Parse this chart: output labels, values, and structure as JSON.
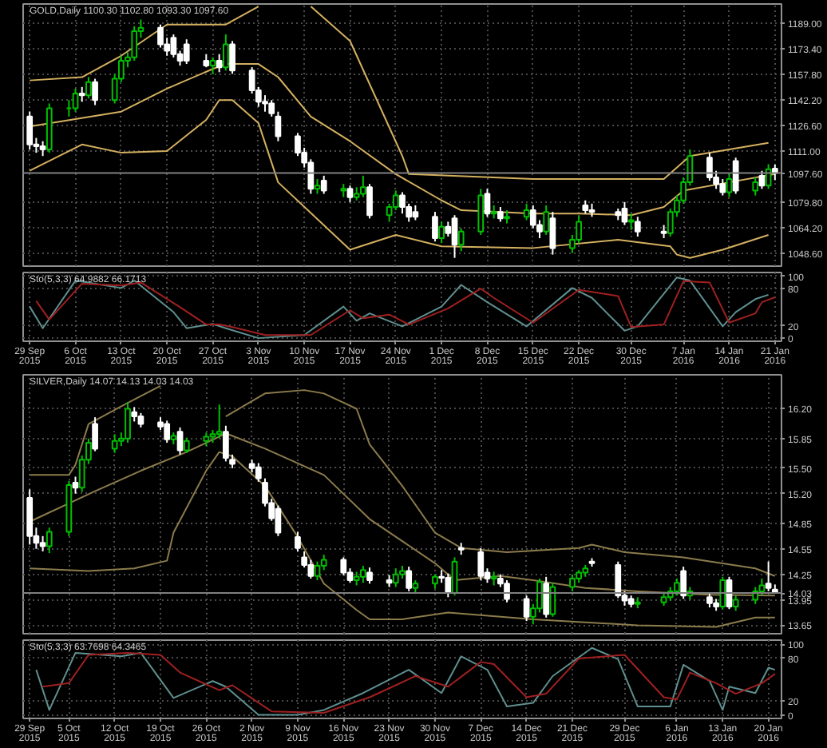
{
  "chart_data": [
    {
      "type": "candlestick",
      "title": "GOLD,Daily 1100.30 1102.80 1093.30 1097.60",
      "tick_labels": "y",
      "grid": true,
      "x": [
        "2015-09-29",
        "2015-09-30",
        "2015-10-01",
        "2015-10-02",
        "2015-10-05",
        "2015-10-06",
        "2015-10-07",
        "2015-10-08",
        "2015-10-09",
        "2015-10-12",
        "2015-10-13",
        "2015-10-14",
        "2015-10-15",
        "2015-10-16",
        "2015-10-19",
        "2015-10-20",
        "2015-10-21",
        "2015-10-22",
        "2015-10-23",
        "2015-10-26",
        "2015-10-27",
        "2015-10-28",
        "2015-10-29",
        "2015-10-30",
        "2015-11-02",
        "2015-11-03",
        "2015-11-04",
        "2015-11-05",
        "2015-11-06",
        "2015-11-09",
        "2015-11-10",
        "2015-11-11",
        "2015-11-12",
        "2015-11-13",
        "2015-11-16",
        "2015-11-17",
        "2015-11-18",
        "2015-11-19",
        "2015-11-20",
        "2015-11-23",
        "2015-11-24",
        "2015-11-25",
        "2015-11-26",
        "2015-11-27",
        "2015-11-30",
        "2015-12-01",
        "2015-12-02",
        "2015-12-03",
        "2015-12-04",
        "2015-12-07",
        "2015-12-08",
        "2015-12-09",
        "2015-12-10",
        "2015-12-11",
        "2015-12-14",
        "2015-12-15",
        "2015-12-16",
        "2015-12-17",
        "2015-12-18",
        "2015-12-21",
        "2015-12-22",
        "2015-12-23",
        "2015-12-24",
        "2015-12-28",
        "2015-12-29",
        "2015-12-30",
        "2015-12-31",
        "2016-01-04",
        "2016-01-05",
        "2016-01-06",
        "2016-01-07",
        "2016-01-08",
        "2016-01-11",
        "2016-01-12",
        "2016-01-13",
        "2016-01-14",
        "2016-01-15",
        "2016-01-18",
        "2016-01-19",
        "2016-01-20",
        "2016-01-21"
      ],
      "ohlc": [
        [
          1132,
          1135,
          1112,
          1115
        ],
        [
          1115,
          1119,
          1110,
          1114
        ],
        [
          1114,
          1117,
          1108,
          1112
        ],
        [
          1112,
          1140,
          1110,
          1137
        ],
        [
          1137,
          1142,
          1132,
          1137
        ],
        [
          1137,
          1149,
          1135,
          1146
        ],
        [
          1146,
          1150,
          1141,
          1145
        ],
        [
          1145,
          1156,
          1143,
          1153
        ],
        [
          1153,
          1155,
          1139,
          1142
        ],
        [
          1142,
          1158,
          1140,
          1155
        ],
        [
          1155,
          1169,
          1153,
          1166
        ],
        [
          1166,
          1171,
          1162,
          1168
        ],
        [
          1168,
          1187,
          1166,
          1184
        ],
        [
          1184,
          1191,
          1180,
          1186
        ],
        [
          1186,
          1188,
          1174,
          1176
        ],
        [
          1176,
          1180,
          1169,
          1172
        ],
        [
          1180,
          1182,
          1168,
          1170
        ],
        [
          1170,
          1172,
          1163,
          1166
        ],
        [
          1176,
          1179,
          1164,
          1166
        ],
        [
          1166,
          1170,
          1162,
          1163
        ],
        [
          1163,
          1168,
          1158,
          1166
        ],
        [
          1166,
          1170,
          1159,
          1162
        ],
        [
          1162,
          1182,
          1160,
          1176
        ],
        [
          1176,
          1178,
          1158,
          1160
        ],
        [
          1160,
          1162,
          1146,
          1148
        ],
        [
          1148,
          1150,
          1138,
          1141
        ],
        [
          1141,
          1145,
          1135,
          1140
        ],
        [
          1140,
          1142,
          1132,
          1134
        ],
        [
          1132,
          1135,
          1117,
          1120
        ],
        [
          1120,
          1122,
          1108,
          1110
        ],
        [
          1110,
          1113,
          1101,
          1104
        ],
        [
          1104,
          1106,
          1085,
          1088
        ],
        [
          1088,
          1094,
          1085,
          1090
        ],
        [
          1093,
          1096,
          1085,
          1087
        ],
        [
          1087,
          1091,
          1083,
          1088
        ],
        [
          1088,
          1090,
          1080,
          1083
        ],
        [
          1083,
          1089,
          1081,
          1085
        ],
        [
          1085,
          1096,
          1083,
          1089
        ],
        [
          1089,
          1091,
          1070,
          1072
        ],
        [
          1072,
          1079,
          1068,
          1077
        ],
        [
          1077,
          1087,
          1075,
          1084
        ],
        [
          1084,
          1086,
          1073,
          1077
        ],
        [
          1077,
          1079,
          1068,
          1071
        ],
        [
          1074,
          1078,
          1069,
          1071
        ],
        [
          1071,
          1074,
          1056,
          1058
        ],
        [
          1058,
          1068,
          1055,
          1065
        ],
        [
          1065,
          1068,
          1059,
          1061
        ],
        [
          1070,
          1072,
          1046,
          1054
        ],
        [
          1054,
          1064,
          1050,
          1062
        ],
        [
          1062,
          1088,
          1060,
          1084
        ],
        [
          1085,
          1088,
          1071,
          1073
        ],
        [
          1073,
          1078,
          1070,
          1074
        ],
        [
          1074,
          1077,
          1068,
          1070
        ],
        [
          1070,
          1075,
          1067,
          1071
        ],
        [
          1071,
          1079,
          1069,
          1075
        ],
        [
          1075,
          1078,
          1064,
          1066
        ],
        [
          1066,
          1069,
          1058,
          1062
        ],
        [
          1062,
          1078,
          1060,
          1074
        ],
        [
          1070,
          1074,
          1048,
          1052
        ],
        [
          1052,
          1060,
          1049,
          1057
        ],
        [
          1057,
          1072,
          1055,
          1068
        ],
        [
          1078,
          1081,
          1073,
          1075
        ],
        [
          1075,
          1079,
          1071,
          1074
        ],
        [
          1074,
          1076,
          1069,
          1072
        ],
        [
          1076,
          1080,
          1066,
          1068
        ],
        [
          1068,
          1073,
          1063,
          1069
        ],
        [
          1068,
          1071,
          1059,
          1062
        ],
        [
          1062,
          1066,
          1058,
          1061
        ],
        [
          1061,
          1076,
          1059,
          1074
        ],
        [
          1074,
          1084,
          1071,
          1081
        ],
        [
          1081,
          1095,
          1079,
          1092
        ],
        [
          1092,
          1112,
          1090,
          1108
        ],
        [
          1107,
          1110,
          1093,
          1095
        ],
        [
          1095,
          1099,
          1088,
          1091
        ],
        [
          1091,
          1094,
          1084,
          1086
        ],
        [
          1086,
          1097,
          1083,
          1094
        ],
        [
          1105,
          1107,
          1085,
          1087
        ],
        [
          1087,
          1095,
          1084,
          1092
        ],
        [
          1096,
          1099,
          1088,
          1090
        ],
        [
          1090,
          1103,
          1088,
          1100
        ],
        [
          1100.3,
          1102.8,
          1093.3,
          1097.6
        ]
      ],
      "colors": [
        "#ffffff",
        "#ffffff",
        "#ffffff",
        "#00c000",
        "#00c000",
        "#00c000",
        "#ffffff",
        "#00c000",
        "#ffffff",
        "#00c000",
        "#00c000",
        "#00c000",
        "#00c000",
        "#00c000",
        "#ffffff",
        "#ffffff",
        "#ffffff",
        "#ffffff",
        "#ffffff",
        "#ffffff",
        "#00c000",
        "#ffffff",
        "#00c000",
        "#ffffff",
        "#ffffff",
        "#ffffff",
        "#ffffff",
        "#ffffff",
        "#ffffff",
        "#ffffff",
        "#ffffff",
        "#ffffff",
        "#00c000",
        "#ffffff",
        "#00c000",
        "#ffffff",
        "#00c000",
        "#00c000",
        "#ffffff",
        "#00c000",
        "#00c000",
        "#ffffff",
        "#ffffff",
        "#ffffff",
        "#ffffff",
        "#00c000",
        "#ffffff",
        "#ffffff",
        "#00c000",
        "#00c000",
        "#ffffff",
        "#00c000",
        "#ffffff",
        "#00c000",
        "#00c000",
        "#ffffff",
        "#ffffff",
        "#00c000",
        "#ffffff",
        "#00c000",
        "#00c000",
        "#ffffff",
        "#ffffff",
        "#ffffff",
        "#ffffff",
        "#00c000",
        "#ffffff",
        "#ffffff",
        "#00c000",
        "#00c000",
        "#00c000",
        "#00c000",
        "#ffffff",
        "#ffffff",
        "#ffffff",
        "#00c000",
        "#ffffff",
        "#00c000",
        "#ffffff",
        "#00c000",
        "#ffffff"
      ],
      "series": [
        {
          "type": "line",
          "color": "#d4b060",
          "x": [
            "2015-09-29",
            "2015-10-07",
            "2015-10-13",
            "2015-10-20",
            "2015-10-29",
            "2015-11-03",
            "2015-11-04",
            "2015-11-11",
            "2015-11-17",
            "2015-11-25",
            "2015-11-26",
            "2015-12-15",
            "2016-01-04",
            "2016-01-08",
            "2016-01-20"
          ],
          "values": [
            1154,
            1156,
            1169,
            1188,
            1188,
            1199,
            null,
            1199,
            1178,
            1108,
            1097,
            1094,
            1094,
            1108,
            1116
          ]
        },
        {
          "type": "line",
          "color": "#d4b060",
          "x": [
            "2015-09-29",
            "2015-10-13",
            "2015-10-20",
            "2015-10-27",
            "2015-10-29",
            "2015-11-03",
            "2015-11-06",
            "2015-11-11",
            "2015-11-17",
            "2015-11-24",
            "2015-12-01",
            "2015-12-04",
            "2015-12-15",
            "2015-12-22",
            "2015-12-30",
            "2016-01-04",
            "2016-01-07",
            "2016-01-14",
            "2016-01-21"
          ],
          "values": [
            1126,
            1135,
            1149,
            1161,
            1164,
            1164,
            1156,
            1132,
            1117,
            1097,
            1081,
            1075,
            1073,
            1073,
            1072,
            1077,
            1087,
            1092,
            1097
          ]
        },
        {
          "type": "line",
          "color": "#d4b060",
          "x": [
            "2015-09-29",
            "2015-10-07",
            "2015-10-13",
            "2015-10-20",
            "2015-10-26",
            "2015-10-28",
            "2015-10-30",
            "2015-11-03",
            "2015-11-06",
            "2015-11-17",
            "2015-11-24",
            "2015-12-01",
            "2015-12-15",
            "2015-12-28",
            "2016-01-05",
            "2016-01-06",
            "2016-01-08",
            "2016-01-13",
            "2016-01-20"
          ],
          "values": [
            1099,
            1115,
            1110,
            1111,
            1130,
            1142,
            1142,
            1128,
            1092,
            1051,
            1060,
            1053,
            1052,
            1057,
            1053,
            1048,
            1046,
            1051,
            1060
          ]
        }
      ],
      "xlim": [
        "2015-09-28",
        "2016-01-22"
      ],
      "xticks": [
        "2015-09-29",
        "2015-10-06",
        "2015-10-13",
        "2015-10-20",
        "2015-10-27",
        "2015-11-03",
        "2015-11-10",
        "2015-11-17",
        "2015-11-24",
        "2015-12-01",
        "2015-12-08",
        "2015-12-15",
        "2015-12-22",
        "2015-12-30",
        "2016-01-07",
        "2016-01-14",
        "2016-01-21"
      ],
      "ylim": [
        1041,
        1200.5
      ],
      "yticks": [
        {
          "value": 1048.6,
          "label": "1048.60"
        },
        {
          "value": 1064.2,
          "label": "1064.20"
        },
        {
          "value": 1079.8,
          "label": "1079.80"
        },
        {
          "value": 1111.0,
          "label": "1111.00"
        },
        {
          "value": 1126.6,
          "label": "1126.60"
        },
        {
          "value": 1142.2,
          "label": "1142.20"
        },
        {
          "value": 1157.8,
          "label": "1157.80"
        },
        {
          "value": 1173.4,
          "label": "1173.40"
        },
        {
          "value": 1189.0,
          "label": "1189.00"
        }
      ],
      "ref_lines": [
        {
          "axis": "y",
          "value": 1097.6,
          "label": "1097.60",
          "color": "#808080"
        }
      ]
    },
    {
      "type": "line",
      "title": "Sto(5,3,3) 64.9882 66.1713",
      "grid": true,
      "series": [
        {
          "color": "#5f8f8f",
          "x": [
            "2015-09-29",
            "2015-10-01",
            "2015-10-06",
            "2015-10-13",
            "2015-10-15",
            "2015-10-21",
            "2015-10-23",
            "2015-10-27",
            "2015-10-29",
            "2015-11-03",
            "2015-11-10",
            "2015-11-16",
            "2015-11-18",
            "2015-11-20",
            "2015-11-25",
            "2015-12-01",
            "2015-12-04",
            "2015-12-08",
            "2015-12-14",
            "2015-12-21",
            "2015-12-24",
            "2015-12-29",
            "2015-12-31",
            "2016-01-06",
            "2016-01-08",
            "2016-01-13",
            "2016-01-15",
            "2016-01-18",
            "2016-01-20"
          ],
          "values": [
            51,
            16,
            93,
            81,
            93,
            42,
            16,
            23,
            16,
            0,
            5,
            51,
            28,
            40,
            19,
            51,
            86,
            58,
            19,
            81,
            65,
            12,
            19,
            98,
            93,
            19,
            42,
            63,
            70
          ]
        },
        {
          "color": "#a02020",
          "x": [
            "2015-09-30",
            "2015-10-02",
            "2015-10-07",
            "2015-10-13",
            "2015-10-16",
            "2015-10-22",
            "2015-10-26",
            "2015-10-28",
            "2015-10-30",
            "2015-11-04",
            "2015-11-11",
            "2015-11-17",
            "2015-11-19",
            "2015-11-23",
            "2015-11-26",
            "2015-12-02",
            "2015-12-07",
            "2015-12-09",
            "2015-12-15",
            "2015-12-22",
            "2015-12-28",
            "2015-12-30",
            "2016-01-04",
            "2016-01-07",
            "2016-01-11",
            "2016-01-14",
            "2016-01-18",
            "2016-01-19",
            "2016-01-21"
          ],
          "values": [
            60,
            30,
            88,
            85,
            90,
            50,
            22,
            22,
            18,
            5,
            5,
            45,
            32,
            38,
            22,
            48,
            80,
            65,
            25,
            78,
            68,
            18,
            22,
            92,
            90,
            25,
            40,
            58,
            66
          ]
        }
      ],
      "xlim": [
        "2015-09-28",
        "2016-01-22"
      ],
      "xticks": [
        {
          "value": "2015-09-29",
          "label": "29 Sep 2015"
        },
        {
          "value": "2015-10-06",
          "label": "6 Oct 2015"
        },
        {
          "value": "2015-10-13",
          "label": "13 Oct 2015"
        },
        {
          "value": "2015-10-20",
          "label": "20 Oct 2015"
        },
        {
          "value": "2015-10-27",
          "label": "27 Oct 2015"
        },
        {
          "value": "2015-11-03",
          "label": "3 Nov 2015"
        },
        {
          "value": "2015-11-10",
          "label": "10 Nov 2015"
        },
        {
          "value": "2015-11-17",
          "label": "17 Nov 2015"
        },
        {
          "value": "2015-11-24",
          "label": "24 Nov 2015"
        },
        {
          "value": "2015-12-01",
          "label": "1 Dec 2015"
        },
        {
          "value": "2015-12-08",
          "label": "8 Dec 2015"
        },
        {
          "value": "2015-12-15",
          "label": "15 Dec 2015"
        },
        {
          "value": "2015-12-22",
          "label": "22 Dec 2015"
        },
        {
          "value": "2015-12-30",
          "label": "30 Dec 2015"
        },
        {
          "value": "2016-01-07",
          "label": "7 Jan 2016"
        },
        {
          "value": "2016-01-14",
          "label": "14 Jan 2016"
        },
        {
          "value": "2016-01-21",
          "label": "21 Jan 2016"
        }
      ],
      "ylim": [
        -5,
        106
      ],
      "yticks": [
        0,
        20,
        80,
        100
      ]
    },
    {
      "type": "candlestick",
      "title": "SILVER,Daily 14.07 14.13 14.03 14.03",
      "tick_labels": "y",
      "grid": true,
      "x": [
        "2015-09-29",
        "2015-09-30",
        "2015-10-01",
        "2015-10-02",
        "2015-10-05",
        "2015-10-06",
        "2015-10-07",
        "2015-10-08",
        "2015-10-09",
        "2015-10-12",
        "2015-10-13",
        "2015-10-14",
        "2015-10-15",
        "2015-10-16",
        "2015-10-19",
        "2015-10-20",
        "2015-10-21",
        "2015-10-22",
        "2015-10-23",
        "2015-10-26",
        "2015-10-27",
        "2015-10-28",
        "2015-10-29",
        "2015-10-30",
        "2015-11-02",
        "2015-11-03",
        "2015-11-04",
        "2015-11-05",
        "2015-11-06",
        "2015-11-09",
        "2015-11-10",
        "2015-11-11",
        "2015-11-12",
        "2015-11-13",
        "2015-11-16",
        "2015-11-17",
        "2015-11-18",
        "2015-11-19",
        "2015-11-20",
        "2015-11-23",
        "2015-11-24",
        "2015-11-25",
        "2015-11-26",
        "2015-11-27",
        "2015-11-30",
        "2015-12-01",
        "2015-12-02",
        "2015-12-03",
        "2015-12-04",
        "2015-12-07",
        "2015-12-08",
        "2015-12-09",
        "2015-12-10",
        "2015-12-11",
        "2015-12-14",
        "2015-12-15",
        "2015-12-16",
        "2015-12-17",
        "2015-12-18",
        "2015-12-21",
        "2015-12-22",
        "2015-12-23",
        "2015-12-24",
        "2015-12-28",
        "2015-12-29",
        "2015-12-30",
        "2015-12-31",
        "2016-01-04",
        "2016-01-05",
        "2016-01-06",
        "2016-01-07",
        "2016-01-08",
        "2016-01-11",
        "2016-01-12",
        "2016-01-13",
        "2016-01-14",
        "2016-01-15",
        "2016-01-18",
        "2016-01-19",
        "2016-01-20",
        "2016-01-21"
      ],
      "ohlc": [
        [
          15.15,
          15.25,
          14.6,
          14.7
        ],
        [
          14.7,
          14.8,
          14.55,
          14.62
        ],
        [
          14.62,
          14.7,
          14.52,
          14.58
        ],
        [
          14.58,
          14.8,
          14.5,
          14.75
        ],
        [
          14.75,
          15.35,
          14.7,
          15.3
        ],
        [
          15.33,
          15.4,
          15.2,
          15.27
        ],
        [
          15.27,
          15.65,
          15.22,
          15.6
        ],
        [
          15.6,
          15.85,
          15.55,
          15.8
        ],
        [
          16.02,
          16.1,
          15.7,
          15.73
        ],
        [
          15.73,
          15.9,
          15.68,
          15.82
        ],
        [
          15.82,
          15.92,
          15.76,
          15.85
        ],
        [
          15.85,
          16.28,
          15.8,
          16.2
        ],
        [
          16.16,
          16.22,
          16.05,
          16.11
        ],
        [
          16.11,
          16.15,
          15.98,
          16.02
        ],
        [
          16.04,
          16.1,
          15.95,
          15.99
        ],
        [
          16.02,
          16.06,
          15.8,
          15.84
        ],
        [
          15.84,
          15.92,
          15.78,
          15.88
        ],
        [
          15.93,
          15.98,
          15.66,
          15.71
        ],
        [
          15.71,
          15.86,
          15.68,
          15.82
        ],
        [
          15.82,
          15.92,
          15.76,
          15.87
        ],
        [
          15.87,
          15.95,
          15.8,
          15.9
        ],
        [
          15.9,
          16.25,
          15.85,
          15.93
        ],
        [
          15.93,
          16.0,
          15.58,
          15.62
        ],
        [
          15.6,
          15.66,
          15.5,
          15.55
        ],
        [
          15.55,
          15.6,
          15.45,
          15.5
        ],
        [
          15.51,
          15.56,
          15.34,
          15.38
        ],
        [
          15.33,
          15.38,
          15.05,
          15.09
        ],
        [
          15.09,
          15.14,
          14.88,
          14.91
        ],
        [
          15.02,
          15.06,
          14.7,
          14.74
        ],
        [
          14.69,
          14.75,
          14.52,
          14.56
        ],
        [
          14.45,
          14.52,
          14.33,
          14.36
        ],
        [
          14.36,
          14.42,
          14.2,
          14.23
        ],
        [
          14.23,
          14.4,
          14.18,
          14.35
        ],
        [
          14.35,
          14.48,
          14.3,
          14.42
        ],
        [
          14.42,
          14.45,
          14.24,
          14.27
        ],
        [
          14.27,
          14.32,
          14.15,
          14.18
        ],
        [
          14.18,
          14.28,
          14.12,
          14.22
        ],
        [
          14.22,
          14.35,
          14.15,
          14.3
        ],
        [
          14.27,
          14.33,
          14.14,
          14.18
        ],
        [
          14.18,
          14.24,
          14.1,
          14.15
        ],
        [
          14.15,
          14.32,
          14.1,
          14.25
        ],
        [
          14.25,
          14.35,
          14.2,
          14.29
        ],
        [
          14.29,
          14.34,
          14.05,
          14.09
        ],
        [
          14.09,
          14.18,
          14.02,
          14.14
        ],
        [
          14.14,
          14.25,
          14.08,
          14.22
        ],
        [
          14.22,
          14.3,
          14.15,
          14.21
        ],
        [
          14.21,
          14.26,
          13.98,
          14.03
        ],
        [
          14.03,
          14.45,
          14.0,
          14.4
        ],
        [
          14.56,
          14.62,
          14.48,
          14.54
        ],
        [
          14.51,
          14.56,
          14.18,
          14.23
        ],
        [
          14.27,
          14.32,
          14.15,
          14.2
        ],
        [
          14.2,
          14.28,
          14.12,
          14.22
        ],
        [
          14.2,
          14.25,
          14.1,
          14.14
        ],
        [
          14.14,
          14.18,
          13.92,
          13.96
        ],
        [
          13.96,
          14.0,
          13.7,
          13.75
        ],
        [
          13.75,
          13.9,
          13.66,
          13.85
        ],
        [
          13.85,
          14.2,
          13.8,
          14.16
        ],
        [
          14.14,
          14.22,
          13.74,
          13.78
        ],
        [
          13.78,
          14.15,
          13.75,
          14.1
        ],
        [
          14.1,
          14.25,
          14.05,
          14.2
        ],
        [
          14.2,
          14.3,
          14.15,
          14.27
        ],
        [
          14.27,
          14.36,
          14.22,
          14.32
        ],
        [
          14.4,
          14.44,
          14.34,
          14.38
        ],
        [
          14.36,
          14.4,
          13.97,
          14.0
        ],
        [
          14.0,
          14.05,
          13.88,
          13.94
        ],
        [
          13.96,
          14.0,
          13.86,
          13.9
        ],
        [
          13.9,
          13.98,
          13.85,
          13.92
        ],
        [
          13.92,
          14.02,
          13.88,
          13.98
        ],
        [
          13.98,
          14.1,
          13.94,
          14.05
        ],
        [
          14.05,
          14.2,
          14.0,
          14.15
        ],
        [
          14.29,
          14.34,
          13.96,
          14.0
        ],
        [
          14.0,
          14.1,
          13.95,
          14.05
        ],
        [
          13.98,
          14.02,
          13.86,
          13.91
        ],
        [
          13.91,
          13.96,
          13.82,
          13.87
        ],
        [
          13.87,
          14.22,
          13.84,
          14.18
        ],
        [
          14.18,
          14.22,
          13.84,
          13.87
        ],
        [
          13.87,
          14.0,
          13.82,
          13.95
        ],
        [
          13.95,
          14.1,
          13.9,
          14.05
        ],
        [
          14.05,
          14.2,
          14.0,
          14.12
        ],
        [
          14.14,
          14.4,
          14.05,
          14.09
        ],
        [
          14.07,
          14.13,
          14.03,
          14.03
        ]
      ],
      "colors": [
        "#ffffff",
        "#ffffff",
        "#ffffff",
        "#00c000",
        "#00c000",
        "#ffffff",
        "#00c000",
        "#00c000",
        "#ffffff",
        "#00c000",
        "#00c000",
        "#00c000",
        "#ffffff",
        "#ffffff",
        "#ffffff",
        "#ffffff",
        "#00c000",
        "#ffffff",
        "#00c000",
        "#00c000",
        "#00c000",
        "#00c000",
        "#ffffff",
        "#ffffff",
        "#ffffff",
        "#ffffff",
        "#ffffff",
        "#ffffff",
        "#ffffff",
        "#ffffff",
        "#ffffff",
        "#ffffff",
        "#00c000",
        "#00c000",
        "#ffffff",
        "#ffffff",
        "#00c000",
        "#00c000",
        "#ffffff",
        "#ffffff",
        "#00c000",
        "#00c000",
        "#ffffff",
        "#00c000",
        "#00c000",
        "#ffffff",
        "#ffffff",
        "#00c000",
        "#ffffff",
        "#ffffff",
        "#ffffff",
        "#00c000",
        "#ffffff",
        "#ffffff",
        "#ffffff",
        "#00c000",
        "#00c000",
        "#ffffff",
        "#00c000",
        "#00c000",
        "#00c000",
        "#00c000",
        "#ffffff",
        "#ffffff",
        "#ffffff",
        "#ffffff",
        "#00c000",
        "#00c000",
        "#00c000",
        "#00c000",
        "#ffffff",
        "#00c000",
        "#ffffff",
        "#ffffff",
        "#00c000",
        "#ffffff",
        "#00c000",
        "#00c000",
        "#00c000",
        "#ffffff",
        "#ffffff"
      ],
      "series": [
        {
          "type": "line",
          "color": "#8c7c4c",
          "x": [
            "2015-09-29",
            "2015-10-05",
            "2015-10-06",
            "2015-10-08",
            "2015-10-14",
            "2015-10-19",
            "2015-10-20",
            "2015-10-29",
            "2015-11-04",
            "2015-11-10",
            "2015-11-13",
            "2015-11-18",
            "2015-11-20",
            "2015-11-25",
            "2015-11-30",
            "2015-12-04",
            "2015-12-11",
            "2015-12-22",
            "2015-12-24",
            "2015-12-29",
            "2016-01-07",
            "2016-01-18",
            "2016-01-21"
          ],
          "values": [
            15.42,
            15.42,
            15.54,
            16.02,
            16.27,
            16.47,
            null,
            16.11,
            16.38,
            16.42,
            16.38,
            16.2,
            15.78,
            15.29,
            14.74,
            14.56,
            14.51,
            14.56,
            14.6,
            14.51,
            14.45,
            14.32,
            14.23
          ]
        },
        {
          "type": "line",
          "color": "#8c7c4c",
          "x": [
            "2015-09-29",
            "2015-10-09",
            "2015-10-16",
            "2015-10-23",
            "2015-10-29",
            "2015-11-04",
            "2015-11-13",
            "2015-11-20",
            "2015-11-30",
            "2015-12-03",
            "2015-12-10",
            "2015-12-15",
            "2015-12-23",
            "2015-12-31",
            "2016-01-11",
            "2016-01-21"
          ],
          "values": [
            14.87,
            15.23,
            15.47,
            15.69,
            15.91,
            15.73,
            15.42,
            14.9,
            14.38,
            14.18,
            14.23,
            14.18,
            14.09,
            14.05,
            14.01,
            14.0
          ]
        },
        {
          "type": "line",
          "color": "#8c7c4c",
          "x": [
            "2015-09-29",
            "2015-10-08",
            "2015-10-15",
            "2015-10-20",
            "2015-10-21",
            "2015-10-26",
            "2015-10-28",
            "2015-10-30",
            "2015-11-04",
            "2015-11-09",
            "2015-11-13",
            "2015-11-18",
            "2015-11-20",
            "2015-11-25",
            "2015-12-02",
            "2015-12-15",
            "2015-12-31",
            "2016-01-12",
            "2016-01-18",
            "2016-01-21"
          ],
          "values": [
            14.32,
            14.29,
            14.32,
            14.41,
            14.74,
            15.47,
            15.69,
            15.64,
            15.29,
            14.69,
            14.14,
            13.83,
            13.72,
            13.72,
            13.8,
            13.72,
            13.65,
            13.63,
            13.74,
            13.74
          ]
        }
      ],
      "xlim": [
        "2015-09-28",
        "2016-01-22"
      ],
      "xticks": [
        "2015-09-29",
        "2015-10-05",
        "2015-10-12",
        "2015-10-19",
        "2015-10-26",
        "2015-11-02",
        "2015-11-09",
        "2015-11-16",
        "2015-11-23",
        "2015-11-30",
        "2015-12-07",
        "2015-12-14",
        "2015-12-21",
        "2015-12-29",
        "2016-01-06",
        "2016-01-13",
        "2016-01-20"
      ],
      "ylim": [
        13.55,
        16.6
      ],
      "yticks": [
        {
          "value": 13.65,
          "label": "13.65"
        },
        {
          "value": 13.95,
          "label": "13.95"
        },
        {
          "value": 14.25,
          "label": "14.25"
        },
        {
          "value": 14.55,
          "label": "14.55"
        },
        {
          "value": 14.85,
          "label": "14.85"
        },
        {
          "value": 15.2,
          "label": "15.20"
        },
        {
          "value": 15.5,
          "label": "15.50"
        },
        {
          "value": 15.85,
          "label": "15.85"
        },
        {
          "value": 16.2,
          "label": "16.20"
        }
      ],
      "ref_lines": [
        {
          "axis": "y",
          "value": 14.03,
          "label": "14.03",
          "color": "#808080"
        }
      ]
    },
    {
      "type": "line",
      "title": "Sto(5,3,3) 63.7698 64.3465",
      "grid": true,
      "series": [
        {
          "color": "#5f8f8f",
          "x": [
            "2015-09-30",
            "2015-10-02",
            "2015-10-06",
            "2015-10-13",
            "2015-10-16",
            "2015-10-21",
            "2015-10-27",
            "2015-10-29",
            "2015-11-03",
            "2015-11-09",
            "2015-11-13",
            "2015-11-19",
            "2015-11-26",
            "2015-12-01",
            "2015-12-04",
            "2015-12-08",
            "2015-12-11",
            "2015-12-15",
            "2015-12-18",
            "2015-12-24",
            "2015-12-28",
            "2015-12-31",
            "2016-01-05",
            "2016-01-07",
            "2016-01-11",
            "2016-01-13",
            "2016-01-14",
            "2016-01-18",
            "2016-01-20",
            "2016-01-21"
          ],
          "values": [
            64,
            7,
            88,
            83,
            88,
            24,
            48,
            40,
            0,
            0,
            7,
            31,
            64,
            31,
            83,
            64,
            12,
            17,
            55,
            95,
            79,
            12,
            12,
            71,
            48,
            7,
            40,
            31,
            67,
            64
          ]
        },
        {
          "color": "#a02020",
          "x": [
            "2015-10-01",
            "2015-10-05",
            "2015-10-08",
            "2015-10-14",
            "2015-10-19",
            "2015-10-22",
            "2015-10-28",
            "2015-10-30",
            "2015-11-05",
            "2015-11-13",
            "2015-11-20",
            "2015-11-27",
            "2015-12-02",
            "2015-12-07",
            "2015-12-09",
            "2015-12-14",
            "2015-12-17",
            "2015-12-22",
            "2015-12-29",
            "2016-01-04",
            "2016-01-06",
            "2016-01-08",
            "2016-01-12",
            "2016-01-15",
            "2016-01-19",
            "2016-01-21"
          ],
          "values": [
            40,
            45,
            85,
            88,
            85,
            60,
            35,
            42,
            5,
            3,
            25,
            55,
            40,
            75,
            72,
            25,
            30,
            80,
            85,
            25,
            22,
            60,
            45,
            30,
            45,
            58
          ]
        }
      ],
      "xlim": [
        "2015-09-28",
        "2016-01-22"
      ],
      "xticks": [
        {
          "value": "2015-09-29",
          "label": "29 Sep 2015"
        },
        {
          "value": "2015-10-05",
          "label": "5 Oct 2015"
        },
        {
          "value": "2015-10-12",
          "label": "12 Oct 2015"
        },
        {
          "value": "2015-10-19",
          "label": "19 Oct 2015"
        },
        {
          "value": "2015-10-26",
          "label": "26 Oct 2015"
        },
        {
          "value": "2015-11-02",
          "label": "2 Nov 2015"
        },
        {
          "value": "2015-11-09",
          "label": "9 Nov 2015"
        },
        {
          "value": "2015-11-16",
          "label": "16 Nov 2015"
        },
        {
          "value": "2015-11-23",
          "label": "23 Nov 2015"
        },
        {
          "value": "2015-11-30",
          "label": "30 Nov 2015"
        },
        {
          "value": "2015-12-07",
          "label": "7 Dec 2015"
        },
        {
          "value": "2015-12-14",
          "label": "14 Dec 2015"
        },
        {
          "value": "2015-12-21",
          "label": "21 Dec 2015"
        },
        {
          "value": "2015-12-29",
          "label": "29 Dec 2015"
        },
        {
          "value": "2016-01-06",
          "label": "6 Jan 2016"
        },
        {
          "value": "2016-01-13",
          "label": "13 Jan 2016"
        },
        {
          "value": "2016-01-20",
          "label": "20 Jan 2016"
        }
      ],
      "ylim": [
        -5,
        106
      ],
      "yticks": [
        0,
        20,
        80,
        100
      ]
    }
  ]
}
